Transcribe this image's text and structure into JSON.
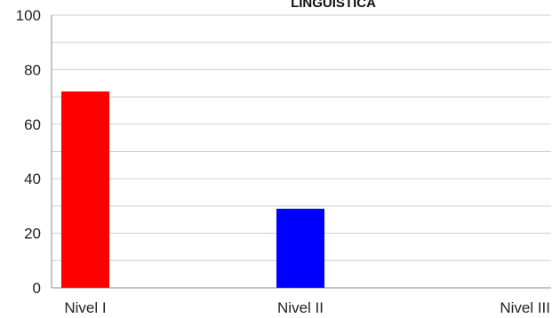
{
  "chart_data": {
    "type": "bar",
    "title": "LINGÜÍSTICA",
    "categories": [
      "Nivel I",
      "Nivel II",
      "Nivel III"
    ],
    "values": [
      72,
      29,
      0
    ],
    "colors": [
      "#ff0000",
      "#0000ff",
      "#00a000"
    ],
    "xlabel": "",
    "ylabel": "",
    "ylim": [
      0,
      100
    ],
    "yticks": [
      0,
      20,
      40,
      60,
      80,
      100
    ],
    "grid": true,
    "gridlines": [
      0,
      10,
      20,
      30,
      40,
      50,
      60,
      70,
      80,
      90,
      100
    ]
  }
}
